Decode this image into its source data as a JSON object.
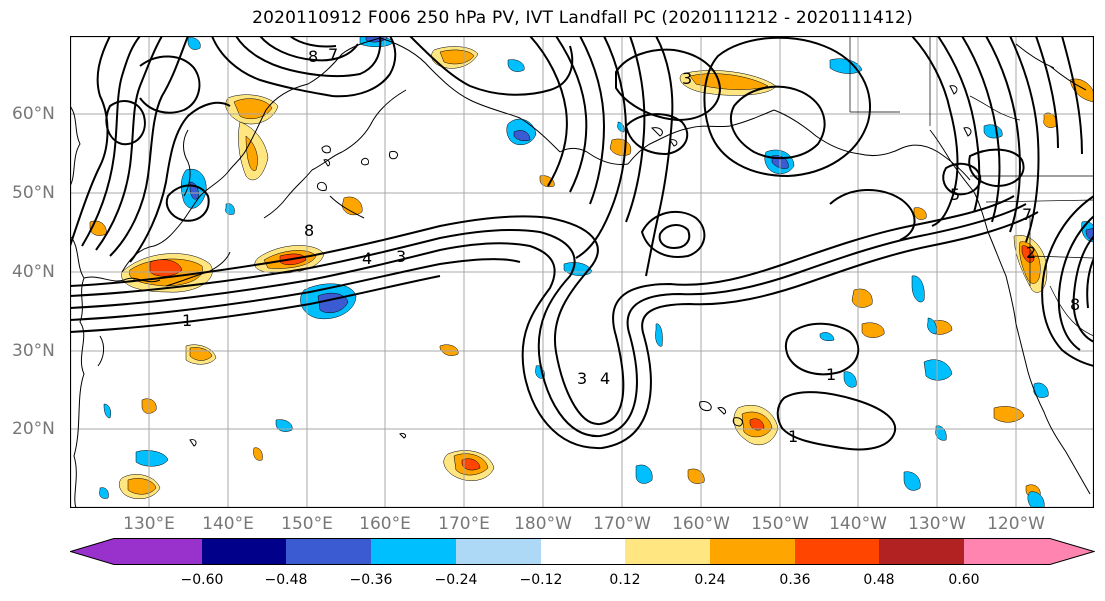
{
  "title": "2020110912 F006 250 hPa PV, IVT Landfall PC (2020111212 - 2020111412)",
  "lat_labels": [
    "60°N",
    "50°N",
    "40°N",
    "30°N",
    "20°N"
  ],
  "lon_labels": [
    "130°E",
    "140°E",
    "150°E",
    "160°E",
    "170°E",
    "180°W",
    "170°W",
    "160°W",
    "150°W",
    "140°W",
    "130°W",
    "120°W"
  ],
  "colorbar": {
    "ticks": [
      "−0.60",
      "−0.48",
      "−0.36",
      "−0.24",
      "−0.12",
      "0.12",
      "0.24",
      "0.36",
      "0.48",
      "0.60"
    ],
    "colors": [
      "#9932cc",
      "#00008b",
      "#3a5bd1",
      "#00bfff",
      "#add8f6",
      "#ffffff",
      "#ffe680",
      "#ffa500",
      "#ff4500",
      "#b22222",
      "#ff85b0"
    ]
  },
  "contour_labels": [
    "8",
    "8",
    "7",
    "4",
    "3",
    "1",
    "3",
    "4",
    "5",
    "2",
    "1",
    "1",
    "3",
    "8",
    "7"
  ],
  "colors": {
    "frame": "#000000",
    "grid": "#a8a8a8",
    "contour": "#000000"
  }
}
